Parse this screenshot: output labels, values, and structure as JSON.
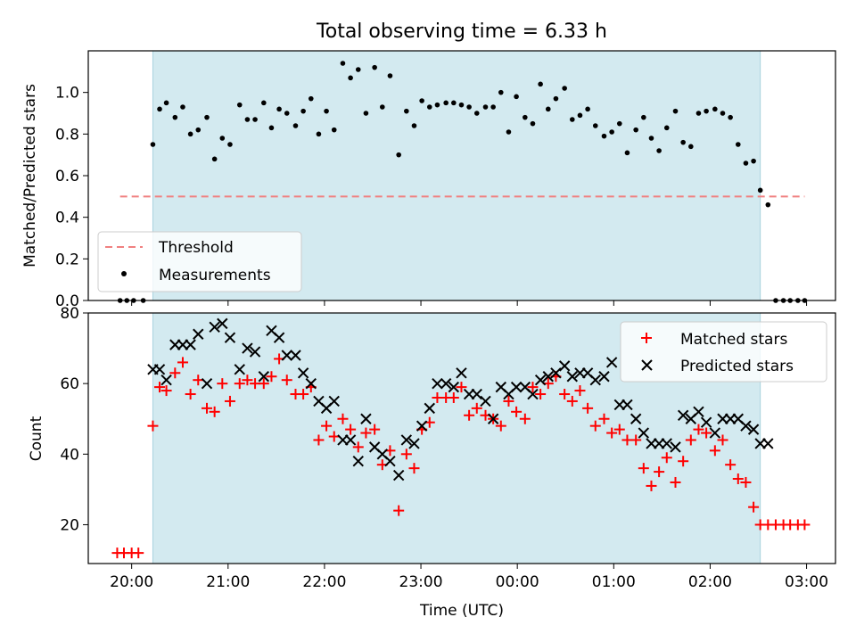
{
  "figure": {
    "title": "Total observing time = 6.33 h",
    "xlabel": "Time (UTC)"
  },
  "chart_data": [
    {
      "type": "scatter",
      "ylabel": "Matched/Predicted stars",
      "xlim": [
        -0.45,
        7.3
      ],
      "ylim": [
        0,
        1.2
      ],
      "yticks": [
        0.0,
        0.2,
        0.4,
        0.6,
        0.8,
        1.0
      ],
      "yticklabels": [
        "0.0",
        "0.2",
        "0.4",
        "0.6",
        "0.8",
        "1.0"
      ],
      "shaded_interval": [
        0.22,
        6.52
      ],
      "shaded_color": "#d3eaf0",
      "threshold": {
        "name": "Threshold",
        "value": 0.5,
        "x": [
          -0.12,
          6.98
        ],
        "color": "#f08080",
        "style": "dashed"
      },
      "series": [
        {
          "name": "Measurements",
          "color": "#000000",
          "marker": "dot",
          "x": [
            -0.12,
            -0.05,
            0.02,
            0.12,
            0.22,
            0.29,
            0.36,
            0.45,
            0.53,
            0.61,
            0.69,
            0.78,
            0.86,
            0.94,
            1.02,
            1.12,
            1.2,
            1.28,
            1.37,
            1.45,
            1.53,
            1.61,
            1.7,
            1.78,
            1.86,
            1.94,
            2.02,
            2.1,
            2.19,
            2.27,
            2.35,
            2.43,
            2.52,
            2.6,
            2.68,
            2.77,
            2.85,
            2.93,
            3.01,
            3.09,
            3.17,
            3.26,
            3.34,
            3.42,
            3.5,
            3.58,
            3.67,
            3.75,
            3.83,
            3.91,
            3.99,
            4.08,
            4.16,
            4.24,
            4.32,
            4.4,
            4.49,
            4.57,
            4.65,
            4.73,
            4.81,
            4.9,
            4.98,
            5.06,
            5.14,
            5.23,
            5.31,
            5.39,
            5.47,
            5.55,
            5.64,
            5.72,
            5.8,
            5.88,
            5.96,
            6.05,
            6.13,
            6.21,
            6.29,
            6.37,
            6.45,
            6.52,
            6.6,
            6.68,
            6.76,
            6.83,
            6.91,
            6.98
          ],
          "y": [
            0.0,
            0.0,
            0.0,
            0.0,
            0.75,
            0.92,
            0.95,
            0.88,
            0.93,
            0.8,
            0.82,
            0.88,
            0.68,
            0.78,
            0.75,
            0.94,
            0.87,
            0.87,
            0.95,
            0.83,
            0.92,
            0.9,
            0.84,
            0.91,
            0.97,
            0.8,
            0.91,
            0.82,
            1.14,
            1.07,
            1.11,
            0.9,
            1.12,
            0.93,
            1.08,
            0.7,
            0.91,
            0.84,
            0.96,
            0.93,
            0.94,
            0.95,
            0.95,
            0.94,
            0.93,
            0.9,
            0.93,
            0.93,
            1.0,
            0.81,
            0.98,
            0.88,
            0.85,
            1.04,
            0.92,
            0.97,
            1.02,
            0.87,
            0.89,
            0.92,
            0.84,
            0.79,
            0.81,
            0.85,
            0.71,
            0.82,
            0.88,
            0.78,
            0.72,
            0.83,
            0.91,
            0.76,
            0.74,
            0.9,
            0.91,
            0.92,
            0.9,
            0.88,
            0.75,
            0.66,
            0.67,
            0.53,
            0.46,
            0.0,
            0.0,
            0.0,
            0.0,
            0.0
          ]
        }
      ],
      "legend": {
        "position": "lower-left",
        "entries": [
          "Threshold",
          "Measurements"
        ]
      }
    },
    {
      "type": "scatter",
      "ylabel": "Count",
      "xlim": [
        -0.45,
        7.3
      ],
      "ylim": [
        9,
        80
      ],
      "yticks": [
        20,
        40,
        60,
        80
      ],
      "yticklabels": [
        "20",
        "40",
        "60",
        "80"
      ],
      "xticks": [
        0,
        1,
        2,
        3,
        4,
        5,
        6,
        7
      ],
      "xticklabels": [
        "20:00",
        "21:00",
        "22:00",
        "23:00",
        "00:00",
        "01:00",
        "02:00",
        "03:00"
      ],
      "shaded_interval": [
        0.22,
        6.52
      ],
      "shaded_color": "#d3eaf0",
      "series": [
        {
          "name": "Matched stars",
          "color": "#ff0000",
          "marker": "plus",
          "x": [
            -0.15,
            -0.08,
            0.0,
            0.07,
            0.22,
            0.29,
            0.36,
            0.45,
            0.53,
            0.61,
            0.69,
            0.78,
            0.86,
            0.94,
            1.02,
            1.12,
            1.2,
            1.28,
            1.37,
            1.45,
            1.53,
            1.61,
            1.7,
            1.78,
            1.86,
            1.94,
            2.02,
            2.1,
            2.19,
            2.27,
            2.35,
            2.43,
            2.52,
            2.6,
            2.68,
            2.77,
            2.85,
            2.93,
            3.01,
            3.09,
            3.17,
            3.26,
            3.34,
            3.42,
            3.5,
            3.58,
            3.67,
            3.75,
            3.83,
            3.91,
            3.99,
            4.08,
            4.16,
            4.24,
            4.32,
            4.4,
            4.49,
            4.57,
            4.65,
            4.73,
            4.81,
            4.9,
            4.98,
            5.06,
            5.14,
            5.23,
            5.31,
            5.39,
            5.47,
            5.55,
            5.64,
            5.72,
            5.8,
            5.88,
            5.96,
            6.05,
            6.13,
            6.21,
            6.29,
            6.37,
            6.45,
            6.52,
            6.6,
            6.68,
            6.76,
            6.83,
            6.91,
            6.98
          ],
          "y": [
            12,
            12,
            12,
            12,
            48,
            59,
            58,
            63,
            66,
            57,
            61,
            53,
            52,
            60,
            55,
            60,
            61,
            60,
            60,
            62,
            67,
            61,
            57,
            57,
            59,
            44,
            48,
            45,
            50,
            47,
            42,
            46,
            47,
            37,
            41,
            24,
            40,
            36,
            47,
            49,
            56,
            56,
            56,
            59,
            51,
            53,
            51,
            50,
            48,
            55,
            52,
            50,
            59,
            57,
            60,
            62,
            57,
            55,
            58,
            53,
            48,
            50,
            46,
            47,
            44,
            44,
            36,
            31,
            35,
            39,
            32,
            38,
            44,
            47,
            46,
            41,
            44,
            37,
            33,
            32,
            25,
            20,
            20,
            20,
            20,
            20,
            20,
            20
          ]
        },
        {
          "name": "Predicted stars",
          "color": "#000000",
          "marker": "x",
          "x": [
            0.22,
            0.29,
            0.36,
            0.45,
            0.53,
            0.61,
            0.69,
            0.78,
            0.86,
            0.94,
            1.02,
            1.12,
            1.2,
            1.28,
            1.37,
            1.45,
            1.53,
            1.61,
            1.7,
            1.78,
            1.86,
            1.94,
            2.02,
            2.1,
            2.19,
            2.27,
            2.35,
            2.43,
            2.52,
            2.6,
            2.68,
            2.77,
            2.85,
            2.93,
            3.01,
            3.09,
            3.17,
            3.26,
            3.34,
            3.42,
            3.5,
            3.58,
            3.67,
            3.75,
            3.83,
            3.91,
            3.99,
            4.08,
            4.16,
            4.24,
            4.32,
            4.4,
            4.49,
            4.57,
            4.65,
            4.73,
            4.81,
            4.9,
            4.98,
            5.06,
            5.14,
            5.23,
            5.31,
            5.39,
            5.47,
            5.55,
            5.64,
            5.72,
            5.8,
            5.88,
            5.96,
            6.05,
            6.13,
            6.21,
            6.29,
            6.37,
            6.45,
            6.52,
            6.6
          ],
          "y": [
            64,
            64,
            61,
            71,
            71,
            71,
            74,
            60,
            76,
            77,
            73,
            64,
            70,
            69,
            62,
            75,
            73,
            68,
            68,
            63,
            60,
            55,
            53,
            55,
            44,
            44,
            38,
            50,
            42,
            40,
            38,
            34,
            44,
            43,
            48,
            53,
            60,
            60,
            59,
            63,
            57,
            57,
            55,
            50,
            59,
            57,
            59,
            59,
            57,
            61,
            62,
            63,
            65,
            62,
            63,
            63,
            61,
            62,
            66,
            54,
            54,
            50,
            46,
            43,
            43,
            43,
            42,
            51,
            50,
            52,
            49,
            46,
            50,
            50,
            50,
            48,
            47,
            43,
            43
          ]
        }
      ],
      "legend": {
        "position": "top-right",
        "entries": [
          "Matched stars",
          "Predicted stars"
        ]
      }
    }
  ]
}
